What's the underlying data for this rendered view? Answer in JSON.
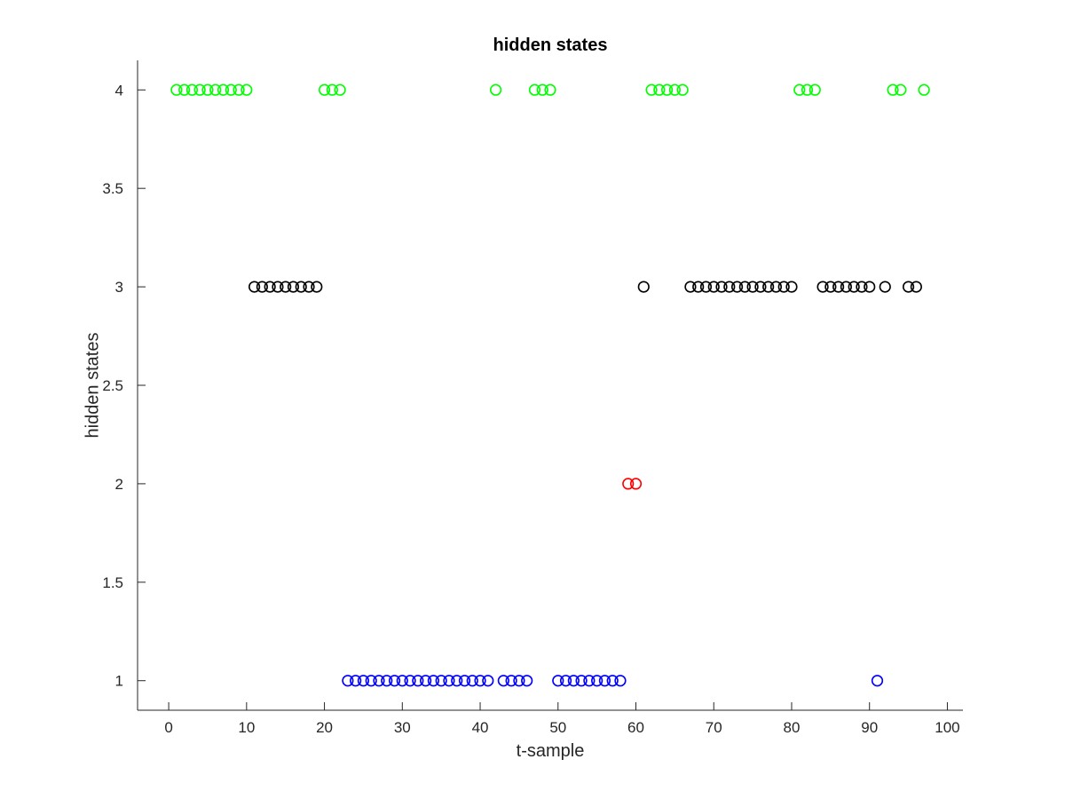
{
  "chart_data": {
    "type": "scatter",
    "title": "hidden states",
    "xlabel": "t-sample",
    "ylabel": "hidden states",
    "xlim": [
      -4,
      102
    ],
    "ylim": [
      0.85,
      4.15
    ],
    "xticks": [
      0,
      10,
      20,
      30,
      40,
      50,
      60,
      70,
      80,
      90,
      100
    ],
    "xtick_labels": [
      "0",
      "10",
      "20",
      "30",
      "40",
      "50",
      "60",
      "70",
      "80",
      "90",
      "100"
    ],
    "yticks": [
      1,
      1.5,
      2,
      2.5,
      3,
      3.5,
      4
    ],
    "ytick_labels": [
      "1",
      "1.5",
      "2",
      "2.5",
      "3",
      "3.5",
      "4"
    ],
    "grid": false,
    "marker": "open-circle",
    "series": [
      {
        "color": "#00ff00",
        "y": 4,
        "x": [
          1,
          2,
          3,
          4,
          5,
          6,
          7,
          8,
          9,
          10,
          20,
          21,
          22,
          42,
          47,
          48,
          49,
          62,
          63,
          64,
          65,
          66,
          81,
          82,
          83,
          93,
          94,
          97
        ]
      },
      {
        "color": "#000000",
        "y": 3,
        "x": [
          11,
          12,
          13,
          14,
          15,
          16,
          17,
          18,
          19,
          61,
          67,
          68,
          69,
          70,
          71,
          72,
          73,
          74,
          75,
          76,
          77,
          78,
          79,
          80,
          84,
          85,
          86,
          87,
          88,
          89,
          90,
          92,
          95,
          96
        ]
      },
      {
        "color": "#ff0000",
        "y": 2,
        "x": [
          59,
          60
        ]
      },
      {
        "color": "#0000ff",
        "y": 1,
        "x": [
          23,
          24,
          25,
          26,
          27,
          28,
          29,
          30,
          31,
          32,
          33,
          34,
          35,
          36,
          37,
          38,
          39,
          40,
          41,
          43,
          44,
          45,
          46,
          50,
          51,
          52,
          53,
          54,
          55,
          56,
          57,
          58,
          91
        ]
      }
    ]
  }
}
